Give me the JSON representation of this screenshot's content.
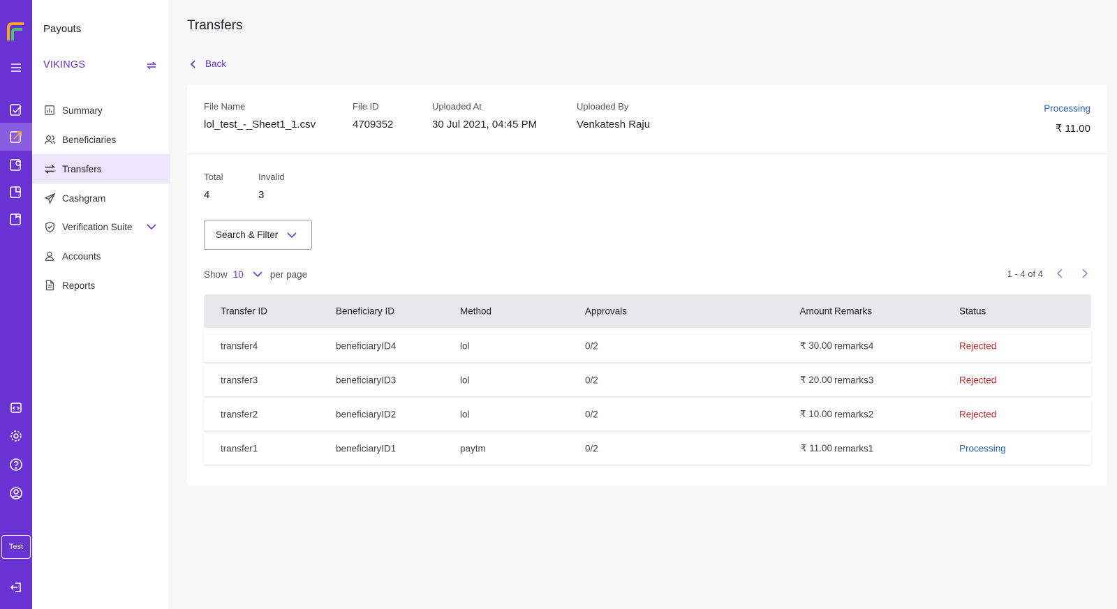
{
  "rail": {
    "test_label": "Test"
  },
  "sidebar": {
    "app_title": "Payouts",
    "org_name": "VIKINGS",
    "items": [
      {
        "label": "Summary",
        "icon": "bar-chart-icon"
      },
      {
        "label": "Beneficiaries",
        "icon": "users-icon"
      },
      {
        "label": "Transfers",
        "icon": "transfer-arrows-icon",
        "active": true
      },
      {
        "label": "Cashgram",
        "icon": "send-icon"
      },
      {
        "label": "Verification Suite",
        "icon": "shield-check-icon"
      },
      {
        "label": "Accounts",
        "icon": "user-icon"
      },
      {
        "label": "Reports",
        "icon": "document-icon"
      }
    ]
  },
  "page": {
    "title": "Transfers",
    "back_label": "Back"
  },
  "file": {
    "name_label": "File Name",
    "name": "lol_test_-_Sheet1_1.csv",
    "id_label": "File ID",
    "id": "4709352",
    "uploaded_at_label": "Uploaded At",
    "uploaded_at": "30 Jul 2021, 04:45 PM",
    "uploaded_by_label": "Uploaded By",
    "uploaded_by": "Venkatesh Raju",
    "status": "Processing",
    "amount": "₹ 11.00"
  },
  "stats": {
    "total_label": "Total",
    "total": "4",
    "invalid_label": "Invalid",
    "invalid": "3"
  },
  "filter": {
    "label": "Search & Filter"
  },
  "pagination": {
    "show_label": "Show",
    "per_page_value": "10",
    "per_page_label": "per page",
    "range": "1 - 4 of 4"
  },
  "table": {
    "headers": {
      "transfer_id": "Transfer ID",
      "beneficiary_id": "Beneficiary ID",
      "method": "Method",
      "approvals": "Approvals",
      "amount": "Amount",
      "remarks": "Remarks",
      "status": "Status"
    },
    "rows": [
      {
        "transfer_id": "transfer4",
        "beneficiary_id": "beneficiaryID4",
        "method": "lol",
        "approvals": "0/2",
        "amount": "₹ 30.00",
        "remarks": "remarks4",
        "status": "Rejected"
      },
      {
        "transfer_id": "transfer3",
        "beneficiary_id": "beneficiaryID3",
        "method": "lol",
        "approvals": "0/2",
        "amount": "₹ 20.00",
        "remarks": "remarks3",
        "status": "Rejected"
      },
      {
        "transfer_id": "transfer2",
        "beneficiary_id": "beneficiaryID2",
        "method": "lol",
        "approvals": "0/2",
        "amount": "₹ 10.00",
        "remarks": "remarks2",
        "status": "Rejected"
      },
      {
        "transfer_id": "transfer1",
        "beneficiary_id": "beneficiaryID1",
        "method": "paytm",
        "approvals": "0/2",
        "amount": "₹ 11.00",
        "remarks": "remarks1",
        "status": "Processing"
      }
    ]
  },
  "colors": {
    "brand": "#6933d3",
    "rejected": "#c62828",
    "processing": "#2a62bd"
  }
}
